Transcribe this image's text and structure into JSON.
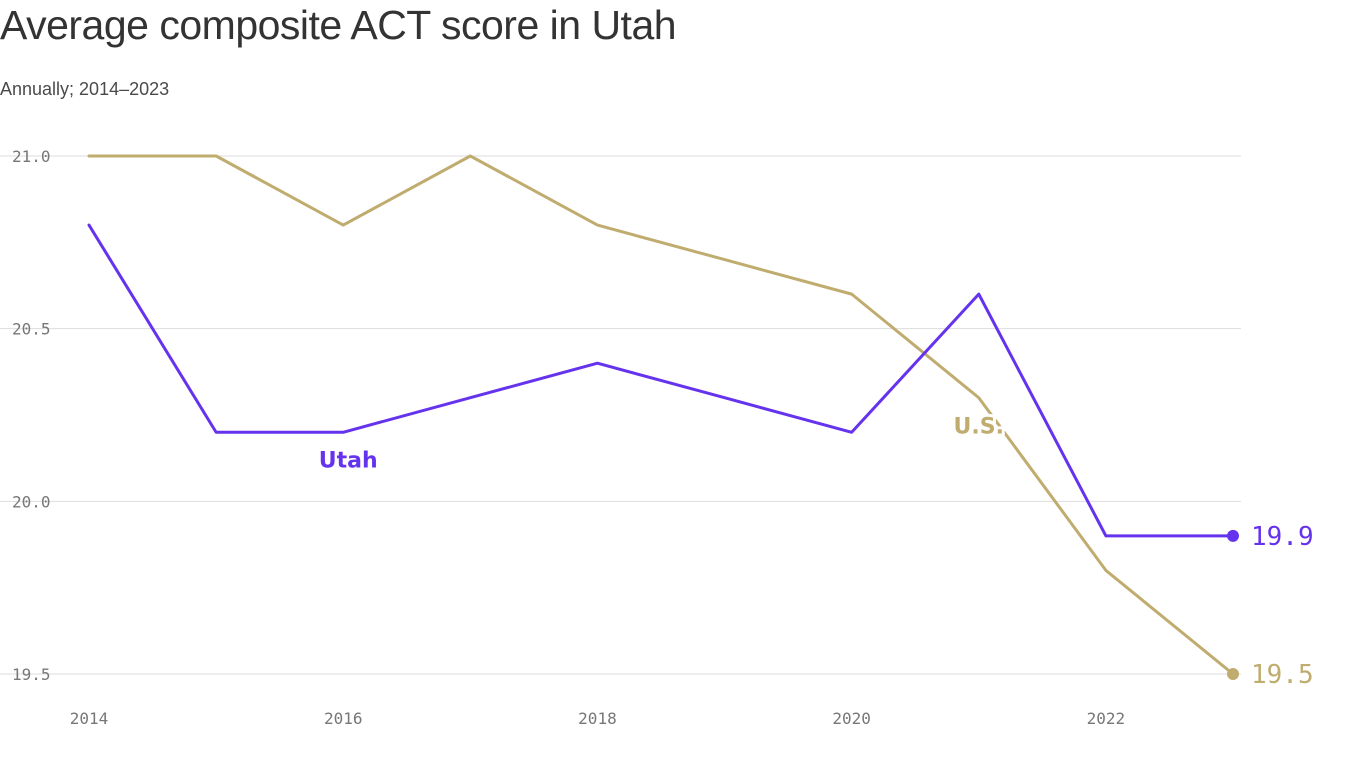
{
  "title": "Average composite ACT score in Utah",
  "subtitle": "Annually; 2014–2023",
  "chart_data": {
    "type": "line",
    "title": "Average composite ACT score in Utah",
    "subtitle": "Annually; 2014–2023",
    "xlabel": "",
    "ylabel": "",
    "x": [
      2014,
      2015,
      2016,
      2017,
      2018,
      2019,
      2020,
      2021,
      2022,
      2023
    ],
    "x_ticks": [
      "2014",
      "2016",
      "2018",
      "2020",
      "2022"
    ],
    "y_ticks": [
      "19.5",
      "20.0",
      "20.5",
      "21.0"
    ],
    "xlim": [
      2014,
      2023
    ],
    "ylim": [
      19.5,
      21.0
    ],
    "grid": "horizontal",
    "legend": "inline labels",
    "series": [
      {
        "name": "Utah",
        "color": "#6533ee",
        "values": [
          20.8,
          20.2,
          20.2,
          20.3,
          20.4,
          20.3,
          20.2,
          20.6,
          19.9,
          19.9
        ],
        "end_label": "19.9"
      },
      {
        "name": "U.S.",
        "color": "#bfac6e",
        "values": [
          21.0,
          21.0,
          20.8,
          21.0,
          20.8,
          20.7,
          20.6,
          20.3,
          19.8,
          19.5
        ],
        "end_label": "19.5"
      }
    ]
  }
}
